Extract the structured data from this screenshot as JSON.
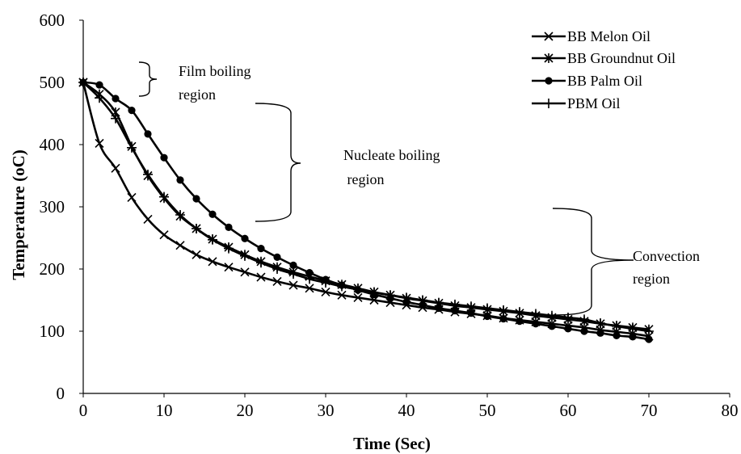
{
  "chart_data": {
    "type": "line",
    "title": "",
    "xlabel": "Time (Sec)",
    "ylabel": "Temperature (oC)",
    "xlim": [
      0,
      80
    ],
    "ylim": [
      0,
      600
    ],
    "xticks": [
      0,
      10,
      20,
      30,
      40,
      50,
      60,
      70,
      80
    ],
    "yticks": [
      0,
      100,
      200,
      300,
      400,
      500,
      600
    ],
    "x_tick_labels": [
      "0",
      "10",
      "20",
      "30",
      "40",
      "50",
      "60",
      "70",
      "80"
    ],
    "y_tick_labels": [
      "0",
      "100",
      "200",
      "300",
      "400",
      "500",
      "600"
    ],
    "grid": false,
    "legend_position": "top-right",
    "series": [
      {
        "name": "BB Melon Oil",
        "marker": "x",
        "x": [
          0,
          2,
          4,
          6,
          8,
          10,
          12,
          14,
          16,
          18,
          20,
          22,
          24,
          26,
          28,
          30,
          32,
          34,
          36,
          38,
          40,
          42,
          44,
          46,
          48,
          50,
          52,
          54,
          56,
          58,
          60,
          62,
          64,
          66,
          68,
          70
        ],
        "y": [
          500,
          402,
          362,
          315,
          280,
          255,
          238,
          223,
          212,
          203,
          195,
          187,
          180,
          174,
          169,
          163,
          158,
          154,
          150,
          146,
          142,
          138,
          135,
          131,
          128,
          125,
          121,
          118,
          115,
          112,
          109,
          106,
          102,
          99,
          96,
          92
        ]
      },
      {
        "name": "BB Groundnut Oil",
        "marker": "asterisk",
        "x": [
          0,
          2,
          4,
          6,
          8,
          10,
          12,
          14,
          16,
          18,
          20,
          22,
          24,
          26,
          28,
          30,
          32,
          34,
          36,
          38,
          40,
          42,
          44,
          46,
          48,
          50,
          52,
          54,
          56,
          58,
          60,
          62,
          64,
          66,
          68,
          70
        ],
        "y": [
          500,
          481,
          452,
          397,
          350,
          314,
          285,
          265,
          248,
          235,
          223,
          212,
          203,
          195,
          188,
          181,
          175,
          169,
          163,
          158,
          153,
          149,
          145,
          141,
          138,
          135,
          132,
          129,
          125,
          122,
          119,
          116,
          112,
          109,
          106,
          103
        ]
      },
      {
        "name": "BB Palm Oil",
        "marker": "circle",
        "x": [
          0,
          2,
          4,
          6,
          8,
          10,
          12,
          14,
          16,
          18,
          20,
          22,
          24,
          26,
          28,
          30,
          32,
          34,
          36,
          38,
          40,
          42,
          44,
          46,
          48,
          50,
          52,
          54,
          56,
          58,
          60,
          62,
          64,
          66,
          68,
          70
        ],
        "y": [
          500,
          496,
          474,
          455,
          417,
          379,
          343,
          313,
          288,
          267,
          249,
          233,
          219,
          206,
          194,
          183,
          174,
          166,
          159,
          153,
          147,
          142,
          137,
          133,
          129,
          124,
          120,
          116,
          112,
          108,
          104,
          100,
          97,
          93,
          91,
          87
        ]
      },
      {
        "name": "PBM Oil",
        "marker": "plus",
        "x": [
          0,
          2,
          4,
          6,
          8,
          10,
          12,
          14,
          16,
          18,
          20,
          22,
          24,
          26,
          28,
          30,
          32,
          34,
          36,
          38,
          40,
          42,
          44,
          46,
          48,
          50,
          52,
          54,
          56,
          58,
          60,
          62,
          64,
          66,
          68,
          70
        ],
        "y": [
          500,
          475,
          442,
          395,
          352,
          316,
          287,
          265,
          247,
          233,
          221,
          210,
          200,
          192,
          184,
          178,
          172,
          167,
          162,
          158,
          154,
          150,
          146,
          143,
          140,
          137,
          134,
          131,
          128,
          125,
          122,
          119,
          113,
          108,
          104,
          100
        ]
      }
    ],
    "annotations": [
      {
        "lines": [
          "Film boiling",
          "region"
        ]
      },
      {
        "lines": [
          "Nucleate boiling",
          " region"
        ]
      },
      {
        "lines": [
          "Convection",
          "region"
        ]
      }
    ]
  }
}
